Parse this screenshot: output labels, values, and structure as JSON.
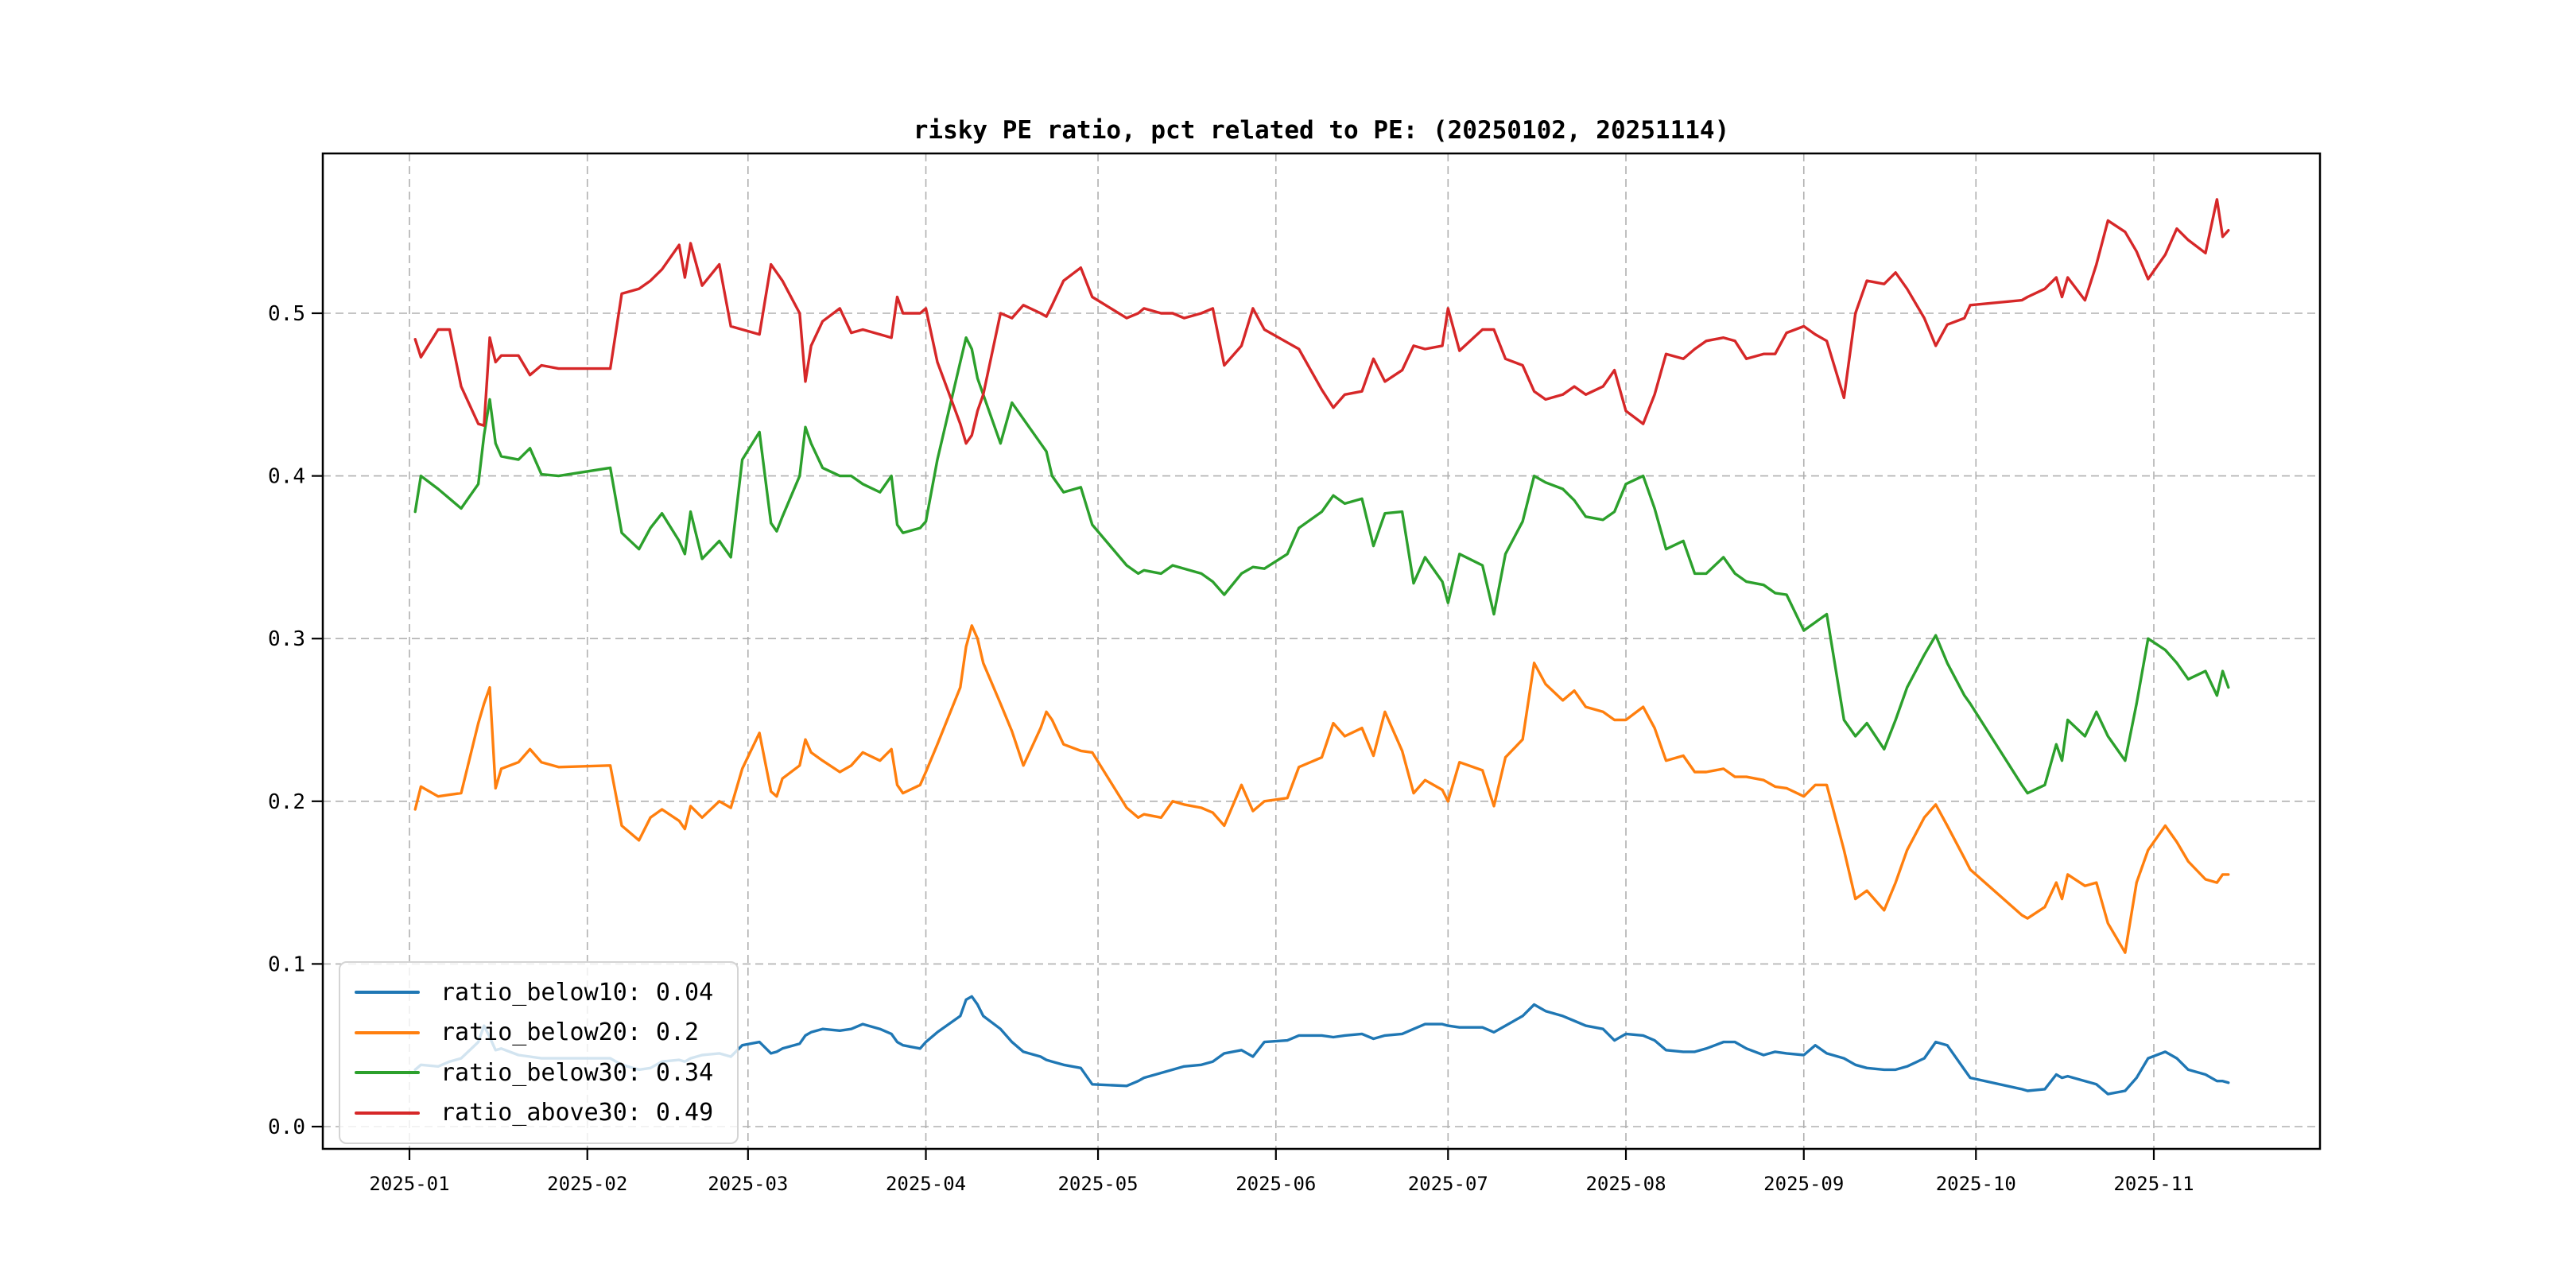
{
  "title": "risky PE ratio, pct related to PE: (20250102, 20251114)",
  "colors": {
    "background": "#ffffff",
    "grid": "#b0b0b0",
    "axis": "#000000",
    "blue": "#1f77b4",
    "orange": "#ff7f0e",
    "green": "#2ca02c",
    "red": "#d62728"
  },
  "chart_data": {
    "type": "line",
    "title": "risky PE ratio, pct related to PE: (20250102, 20251114)",
    "xlabel": "",
    "ylabel": "",
    "grid": true,
    "legend_position": "lower left",
    "xtick_labels": [
      "2025-01",
      "2025-02",
      "2025-03",
      "2025-04",
      "2025-05",
      "2025-06",
      "2025-07",
      "2025-08",
      "2025-09",
      "2025-10",
      "2025-11"
    ],
    "yticks": [
      0.0,
      0.1,
      0.2,
      0.3,
      0.4,
      0.5
    ],
    "ylim": [
      -0.014,
      0.598
    ],
    "x": [
      "2025-01-02",
      "2025-01-03",
      "2025-01-06",
      "2025-01-08",
      "2025-01-10",
      "2025-01-13",
      "2025-01-14",
      "2025-01-15",
      "2025-01-16",
      "2025-01-17",
      "2025-01-20",
      "2025-01-22",
      "2025-01-24",
      "2025-01-27",
      "2025-02-05",
      "2025-02-07",
      "2025-02-10",
      "2025-02-12",
      "2025-02-14",
      "2025-02-17",
      "2025-02-18",
      "2025-02-19",
      "2025-02-21",
      "2025-02-24",
      "2025-02-26",
      "2025-02-28",
      "2025-03-03",
      "2025-03-05",
      "2025-03-06",
      "2025-03-07",
      "2025-03-10",
      "2025-03-11",
      "2025-03-12",
      "2025-03-14",
      "2025-03-17",
      "2025-03-19",
      "2025-03-21",
      "2025-03-24",
      "2025-03-26",
      "2025-03-27",
      "2025-03-28",
      "2025-03-31",
      "2025-04-01",
      "2025-04-03",
      "2025-04-07",
      "2025-04-08",
      "2025-04-09",
      "2025-04-10",
      "2025-04-11",
      "2025-04-14",
      "2025-04-16",
      "2025-04-18",
      "2025-04-21",
      "2025-04-22",
      "2025-04-23",
      "2025-04-25",
      "2025-04-28",
      "2025-04-30",
      "2025-05-06",
      "2025-05-08",
      "2025-05-09",
      "2025-05-12",
      "2025-05-14",
      "2025-05-16",
      "2025-05-19",
      "2025-05-21",
      "2025-05-23",
      "2025-05-26",
      "2025-05-28",
      "2025-05-30",
      "2025-06-03",
      "2025-06-05",
      "2025-06-09",
      "2025-06-11",
      "2025-06-13",
      "2025-06-16",
      "2025-06-18",
      "2025-06-20",
      "2025-06-23",
      "2025-06-25",
      "2025-06-27",
      "2025-06-30",
      "2025-07-01",
      "2025-07-03",
      "2025-07-07",
      "2025-07-09",
      "2025-07-11",
      "2025-07-14",
      "2025-07-16",
      "2025-07-18",
      "2025-07-21",
      "2025-07-23",
      "2025-07-25",
      "2025-07-28",
      "2025-07-30",
      "2025-08-01",
      "2025-08-04",
      "2025-08-06",
      "2025-08-08",
      "2025-08-11",
      "2025-08-13",
      "2025-08-15",
      "2025-08-18",
      "2025-08-20",
      "2025-08-22",
      "2025-08-25",
      "2025-08-27",
      "2025-08-29",
      "2025-09-01",
      "2025-09-03",
      "2025-09-05",
      "2025-09-08",
      "2025-09-10",
      "2025-09-12",
      "2025-09-15",
      "2025-09-17",
      "2025-09-19",
      "2025-09-22",
      "2025-09-24",
      "2025-09-26",
      "2025-09-29",
      "2025-09-30",
      "2025-10-09",
      "2025-10-10",
      "2025-10-13",
      "2025-10-15",
      "2025-10-16",
      "2025-10-17",
      "2025-10-20",
      "2025-10-22",
      "2025-10-24",
      "2025-10-27",
      "2025-10-29",
      "2025-10-31",
      "2025-11-03",
      "2025-11-05",
      "2025-11-07",
      "2025-11-10",
      "2025-11-12",
      "2025-11-13",
      "2025-11-14"
    ],
    "series": [
      {
        "name": "ratio_below10",
        "legend_label": "ratio_below10: 0.04",
        "color": "#1f77b4",
        "values": [
          0.035,
          0.038,
          0.037,
          0.04,
          0.042,
          0.052,
          0.062,
          0.055,
          0.047,
          0.048,
          0.044,
          0.043,
          0.042,
          0.042,
          0.042,
          0.038,
          0.035,
          0.036,
          0.04,
          0.041,
          0.04,
          0.042,
          0.044,
          0.045,
          0.043,
          0.05,
          0.052,
          0.045,
          0.046,
          0.048,
          0.051,
          0.056,
          0.058,
          0.06,
          0.059,
          0.06,
          0.063,
          0.06,
          0.057,
          0.052,
          0.05,
          0.048,
          0.052,
          0.058,
          0.068,
          0.078,
          0.08,
          0.075,
          0.068,
          0.06,
          0.052,
          0.046,
          0.043,
          0.041,
          0.04,
          0.038,
          0.036,
          0.026,
          0.025,
          0.028,
          0.03,
          0.033,
          0.035,
          0.037,
          0.038,
          0.04,
          0.045,
          0.047,
          0.043,
          0.052,
          0.053,
          0.056,
          0.056,
          0.055,
          0.056,
          0.057,
          0.054,
          0.056,
          0.057,
          0.06,
          0.063,
          0.063,
          0.062,
          0.061,
          0.061,
          0.058,
          0.062,
          0.068,
          0.075,
          0.071,
          0.068,
          0.065,
          0.062,
          0.06,
          0.053,
          0.057,
          0.056,
          0.053,
          0.047,
          0.046,
          0.046,
          0.048,
          0.052,
          0.052,
          0.048,
          0.044,
          0.046,
          0.045,
          0.044,
          0.05,
          0.045,
          0.042,
          0.038,
          0.036,
          0.035,
          0.035,
          0.037,
          0.042,
          0.052,
          0.05,
          0.035,
          0.03,
          0.023,
          0.022,
          0.023,
          0.032,
          0.03,
          0.031,
          0.028,
          0.026,
          0.02,
          0.022,
          0.03,
          0.042,
          0.046,
          0.042,
          0.035,
          0.032,
          0.028,
          0.028,
          0.027
        ]
      },
      {
        "name": "ratio_below20",
        "legend_label": "ratio_below20: 0.2",
        "color": "#ff7f0e",
        "values": [
          0.195,
          0.209,
          0.203,
          0.204,
          0.205,
          0.248,
          0.26,
          0.27,
          0.208,
          0.22,
          0.224,
          0.232,
          0.224,
          0.221,
          0.222,
          0.185,
          0.176,
          0.19,
          0.195,
          0.188,
          0.183,
          0.197,
          0.19,
          0.2,
          0.196,
          0.22,
          0.242,
          0.206,
          0.203,
          0.214,
          0.222,
          0.238,
          0.23,
          0.225,
          0.218,
          0.222,
          0.23,
          0.225,
          0.232,
          0.21,
          0.205,
          0.21,
          0.218,
          0.235,
          0.27,
          0.295,
          0.308,
          0.3,
          0.285,
          0.26,
          0.243,
          0.222,
          0.245,
          0.255,
          0.25,
          0.235,
          0.231,
          0.23,
          0.196,
          0.19,
          0.192,
          0.19,
          0.2,
          0.198,
          0.196,
          0.193,
          0.185,
          0.21,
          0.194,
          0.2,
          0.202,
          0.221,
          0.227,
          0.248,
          0.24,
          0.245,
          0.228,
          0.255,
          0.231,
          0.205,
          0.213,
          0.207,
          0.2,
          0.224,
          0.219,
          0.197,
          0.227,
          0.238,
          0.285,
          0.272,
          0.262,
          0.268,
          0.258,
          0.255,
          0.25,
          0.25,
          0.258,
          0.245,
          0.225,
          0.228,
          0.218,
          0.218,
          0.22,
          0.215,
          0.215,
          0.213,
          0.209,
          0.208,
          0.203,
          0.21,
          0.21,
          0.17,
          0.14,
          0.145,
          0.133,
          0.15,
          0.17,
          0.19,
          0.198,
          0.185,
          0.165,
          0.158,
          0.13,
          0.128,
          0.135,
          0.15,
          0.14,
          0.155,
          0.148,
          0.15,
          0.125,
          0.107,
          0.15,
          0.17,
          0.185,
          0.175,
          0.163,
          0.152,
          0.15,
          0.155,
          0.155
        ]
      },
      {
        "name": "ratio_below30",
        "legend_label": "ratio_below30: 0.34",
        "color": "#2ca02c",
        "values": [
          0.378,
          0.4,
          0.392,
          0.386,
          0.38,
          0.395,
          0.425,
          0.447,
          0.42,
          0.412,
          0.41,
          0.417,
          0.401,
          0.4,
          0.405,
          0.365,
          0.355,
          0.368,
          0.377,
          0.36,
          0.352,
          0.378,
          0.349,
          0.36,
          0.35,
          0.41,
          0.427,
          0.371,
          0.366,
          0.375,
          0.4,
          0.43,
          0.42,
          0.405,
          0.4,
          0.4,
          0.395,
          0.39,
          0.4,
          0.37,
          0.365,
          0.368,
          0.372,
          0.41,
          0.47,
          0.485,
          0.478,
          0.46,
          0.45,
          0.42,
          0.445,
          0.435,
          0.42,
          0.415,
          0.4,
          0.39,
          0.393,
          0.37,
          0.345,
          0.34,
          0.342,
          0.34,
          0.345,
          0.343,
          0.34,
          0.335,
          0.327,
          0.34,
          0.344,
          0.343,
          0.352,
          0.368,
          0.378,
          0.388,
          0.383,
          0.386,
          0.357,
          0.377,
          0.378,
          0.334,
          0.35,
          0.335,
          0.322,
          0.352,
          0.345,
          0.315,
          0.352,
          0.372,
          0.4,
          0.396,
          0.392,
          0.385,
          0.375,
          0.373,
          0.378,
          0.395,
          0.4,
          0.38,
          0.355,
          0.36,
          0.34,
          0.34,
          0.35,
          0.34,
          0.335,
          0.333,
          0.328,
          0.327,
          0.305,
          0.31,
          0.315,
          0.25,
          0.24,
          0.248,
          0.232,
          0.25,
          0.27,
          0.29,
          0.302,
          0.285,
          0.265,
          0.26,
          0.21,
          0.205,
          0.21,
          0.235,
          0.225,
          0.25,
          0.24,
          0.255,
          0.24,
          0.225,
          0.26,
          0.3,
          0.293,
          0.285,
          0.275,
          0.28,
          0.265,
          0.28,
          0.27
        ]
      },
      {
        "name": "ratio_above30",
        "legend_label": "ratio_above30: 0.49",
        "color": "#d62728",
        "values": [
          0.484,
          0.473,
          0.49,
          0.49,
          0.455,
          0.432,
          0.431,
          0.485,
          0.47,
          0.474,
          0.474,
          0.462,
          0.468,
          0.466,
          0.466,
          0.512,
          0.515,
          0.52,
          0.527,
          0.542,
          0.522,
          0.543,
          0.517,
          0.53,
          0.492,
          0.49,
          0.487,
          0.53,
          0.525,
          0.52,
          0.5,
          0.458,
          0.48,
          0.495,
          0.503,
          0.488,
          0.49,
          0.487,
          0.485,
          0.51,
          0.5,
          0.5,
          0.503,
          0.47,
          0.432,
          0.42,
          0.425,
          0.44,
          0.45,
          0.5,
          0.497,
          0.505,
          0.5,
          0.498,
          0.505,
          0.52,
          0.528,
          0.51,
          0.497,
          0.5,
          0.503,
          0.5,
          0.5,
          0.497,
          0.5,
          0.503,
          0.468,
          0.48,
          0.503,
          0.49,
          0.482,
          0.478,
          0.453,
          0.442,
          0.45,
          0.452,
          0.472,
          0.458,
          0.465,
          0.48,
          0.478,
          0.48,
          0.503,
          0.477,
          0.49,
          0.49,
          0.472,
          0.468,
          0.452,
          0.447,
          0.45,
          0.455,
          0.45,
          0.455,
          0.465,
          0.44,
          0.432,
          0.45,
          0.475,
          0.472,
          0.478,
          0.483,
          0.485,
          0.483,
          0.472,
          0.475,
          0.475,
          0.488,
          0.492,
          0.487,
          0.483,
          0.448,
          0.5,
          0.52,
          0.518,
          0.525,
          0.515,
          0.497,
          0.48,
          0.493,
          0.497,
          0.505,
          0.508,
          0.51,
          0.515,
          0.522,
          0.51,
          0.522,
          0.508,
          0.53,
          0.557,
          0.55,
          0.538,
          0.521,
          0.536,
          0.552,
          0.545,
          0.537,
          0.57,
          0.547,
          0.551
        ]
      }
    ]
  }
}
